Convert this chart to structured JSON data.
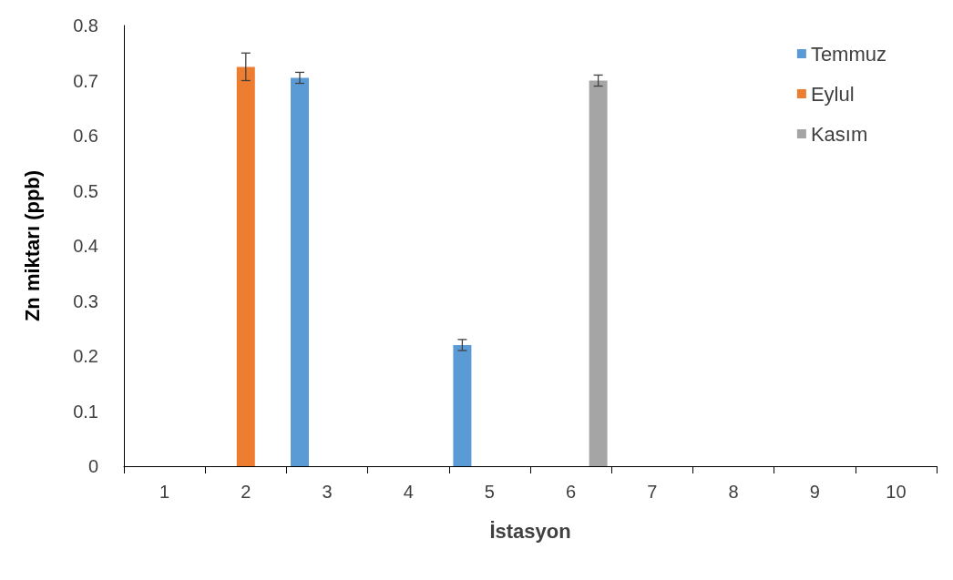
{
  "chart_data": {
    "type": "bar",
    "xlabel": "İstasyon",
    "ylabel": "Zn miktarı (ppb)",
    "categories": [
      "1",
      "2",
      "3",
      "4",
      "5",
      "6",
      "7",
      "8",
      "9",
      "10"
    ],
    "series": [
      {
        "name": "Temmuz",
        "color": "#5b9bd5",
        "values": [
          null,
          null,
          0.705,
          null,
          0.22,
          null,
          null,
          null,
          null,
          null
        ],
        "errors": [
          null,
          null,
          0.01,
          null,
          0.01,
          null,
          null,
          null,
          null,
          null
        ]
      },
      {
        "name": "Eylul",
        "color": "#ed7d31",
        "values": [
          null,
          0.725,
          null,
          null,
          null,
          null,
          null,
          null,
          null,
          null
        ],
        "errors": [
          null,
          0.025,
          null,
          null,
          null,
          null,
          null,
          null,
          null,
          null
        ]
      },
      {
        "name": "Kasım",
        "color": "#a5a5a5",
        "values": [
          null,
          null,
          null,
          null,
          null,
          0.7,
          null,
          null,
          null,
          null
        ],
        "errors": [
          null,
          null,
          null,
          null,
          null,
          0.01,
          null,
          null,
          null,
          null
        ]
      }
    ],
    "ylim": [
      0,
      0.8
    ],
    "yticks": [
      0,
      0.1,
      0.2,
      0.3,
      0.4,
      0.5,
      0.6,
      0.7,
      0.8
    ],
    "grid": false,
    "legend": "top right"
  }
}
